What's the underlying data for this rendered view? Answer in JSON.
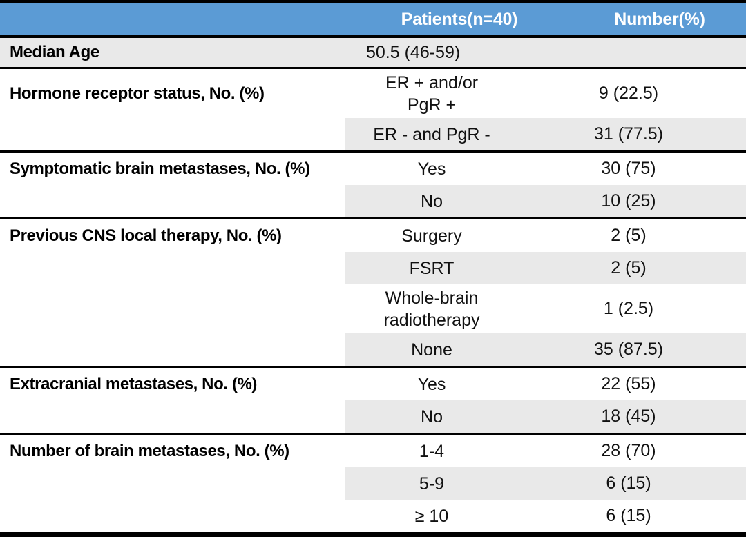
{
  "colors": {
    "header_bg": "#5B9BD5",
    "header_text": "#FFFFFF",
    "row_shade": "#E9E9E9",
    "rule": "#000000"
  },
  "table": {
    "columns": {
      "category": "",
      "patients": "Patients(n=40)",
      "number": "Number(%)"
    },
    "sections": [
      {
        "category": "Median Age",
        "rows": [
          {
            "value": "50.5 (46-59)",
            "number": "",
            "shade": "full"
          }
        ]
      },
      {
        "category": "Hormone receptor status, No. (%)",
        "rows": [
          {
            "value": "ER + and/or\nPgR +",
            "number": "9 (22.5)",
            "shade": "none"
          },
          {
            "value": "ER - and PgR -",
            "number": "31 (77.5)",
            "shade": "row"
          }
        ]
      },
      {
        "category": "Symptomatic brain metastases, No. (%)",
        "rows": [
          {
            "value": "Yes",
            "number": "30 (75)",
            "shade": "none"
          },
          {
            "value": "No",
            "number": "10 (25)",
            "shade": "row"
          }
        ]
      },
      {
        "category": "Previous CNS local therapy, No. (%)",
        "rows": [
          {
            "value": "Surgery",
            "number": "2 (5)",
            "shade": "none"
          },
          {
            "value": "FSRT",
            "number": "2 (5)",
            "shade": "row"
          },
          {
            "value": "Whole-brain\nradiotherapy",
            "number": "1 (2.5)",
            "shade": "none"
          },
          {
            "value": "None",
            "number": "35 (87.5)",
            "shade": "row"
          }
        ]
      },
      {
        "category": "Extracranial metastases, No. (%)",
        "rows": [
          {
            "value": "Yes",
            "number": "22 (55)",
            "shade": "none"
          },
          {
            "value": "No",
            "number": "18 (45)",
            "shade": "row"
          }
        ]
      },
      {
        "category": "Number of brain metastases, No. (%)",
        "rows": [
          {
            "value": "1-4",
            "number": "28 (70)",
            "shade": "none"
          },
          {
            "value": "5-9",
            "number": "6 (15)",
            "shade": "row"
          },
          {
            "value": "≥ 10",
            "number": "6 (15)",
            "shade": "none"
          }
        ]
      }
    ]
  }
}
